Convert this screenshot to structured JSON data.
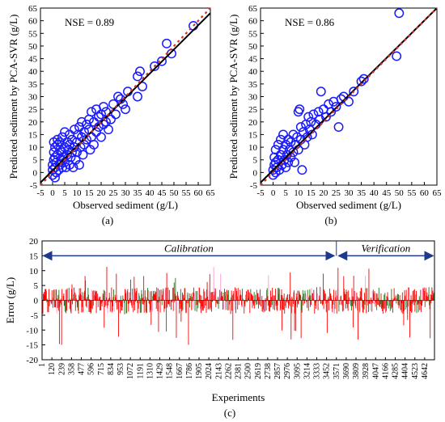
{
  "figure": {
    "panel_labels": [
      "(a)",
      "(b)",
      "(c)"
    ]
  },
  "colors": {
    "scatter_marker": "#1a1aff",
    "fit_line": "#000000",
    "one_to_one_line": "#cc3333",
    "error_bars_dark": "#1a7a1a",
    "error_bars_red": "#ff0000",
    "error_bars_pink": "#ff99cc",
    "arrow": "#1f3a8a"
  },
  "chart_data": [
    {
      "type": "scatter",
      "panel": "(a)",
      "annotation": "NSE = 0.89",
      "xlabel": "Observed sediment (g/L)",
      "ylabel": "Predicted sediment by PCA-SVR (g/L)",
      "xlim": [
        -5,
        65
      ],
      "ylim": [
        -5,
        65
      ],
      "xticks": [
        -5,
        0,
        5,
        10,
        15,
        20,
        25,
        30,
        35,
        40,
        45,
        50,
        55,
        60,
        65
      ],
      "yticks": [
        -5,
        0,
        5,
        10,
        15,
        20,
        25,
        30,
        35,
        40,
        45,
        50,
        55,
        60,
        65
      ],
      "fit_line": [
        [
          -5,
          -4
        ],
        [
          65,
          63
        ]
      ],
      "points": [
        [
          0,
          -1
        ],
        [
          0,
          1
        ],
        [
          0,
          3
        ],
        [
          0.5,
          5
        ],
        [
          0.5,
          8
        ],
        [
          0.5,
          12
        ],
        [
          1,
          -2
        ],
        [
          1,
          2
        ],
        [
          1,
          6
        ],
        [
          1,
          10
        ],
        [
          1.5,
          0
        ],
        [
          1.5,
          4
        ],
        [
          2,
          7
        ],
        [
          2,
          11
        ],
        [
          2,
          13
        ],
        [
          2.5,
          1
        ],
        [
          3,
          3
        ],
        [
          3,
          9
        ],
        [
          3,
          12
        ],
        [
          3.5,
          5
        ],
        [
          4,
          2
        ],
        [
          4,
          8
        ],
        [
          4,
          14
        ],
        [
          4.5,
          6
        ],
        [
          5,
          4
        ],
        [
          5,
          10
        ],
        [
          5,
          16
        ],
        [
          5.5,
          2
        ],
        [
          6,
          7
        ],
        [
          6,
          12
        ],
        [
          6.5,
          9
        ],
        [
          7,
          3
        ],
        [
          7,
          11
        ],
        [
          7,
          15
        ],
        [
          7.5,
          6
        ],
        [
          8,
          8
        ],
        [
          8,
          13
        ],
        [
          8.5,
          2
        ],
        [
          9,
          10
        ],
        [
          9,
          17
        ],
        [
          9.5,
          5
        ],
        [
          10,
          12
        ],
        [
          10,
          8
        ],
        [
          10.5,
          15
        ],
        [
          11,
          3
        ],
        [
          11,
          18
        ],
        [
          11.5,
          10
        ],
        [
          12,
          14
        ],
        [
          12,
          20
        ],
        [
          12.5,
          7
        ],
        [
          13,
          16
        ],
        [
          13,
          11
        ],
        [
          14,
          19
        ],
        [
          14,
          13
        ],
        [
          15,
          21
        ],
        [
          15,
          17
        ],
        [
          15.5,
          9
        ],
        [
          16,
          24
        ],
        [
          16,
          14
        ],
        [
          17,
          20
        ],
        [
          17,
          11
        ],
        [
          18,
          25
        ],
        [
          18,
          16
        ],
        [
          19,
          22
        ],
        [
          19,
          18
        ],
        [
          20,
          23
        ],
        [
          20,
          14
        ],
        [
          21,
          26
        ],
        [
          21,
          19
        ],
        [
          22,
          24
        ],
        [
          22,
          20
        ],
        [
          23,
          17
        ],
        [
          24,
          21
        ],
        [
          25,
          27
        ],
        [
          26,
          23
        ],
        [
          27,
          30
        ],
        [
          28,
          29
        ],
        [
          29,
          27
        ],
        [
          30,
          25
        ],
        [
          31,
          32
        ],
        [
          35,
          30
        ],
        [
          35,
          38
        ],
        [
          36,
          40
        ],
        [
          37,
          34
        ],
        [
          42,
          42
        ],
        [
          45,
          44
        ],
        [
          47,
          51
        ],
        [
          49,
          47
        ],
        [
          58,
          58
        ]
      ]
    },
    {
      "type": "scatter",
      "panel": "(b)",
      "annotation": "NSE = 0.86",
      "xlabel": "Observed sediment (g/L)",
      "ylabel": "Predicted sediment by PCA-SVR (g/L)",
      "xlim": [
        -5,
        65
      ],
      "ylim": [
        -5,
        65
      ],
      "xticks": [
        -5,
        0,
        5,
        10,
        15,
        20,
        25,
        30,
        35,
        40,
        45,
        50,
        55,
        60,
        65
      ],
      "yticks": [
        -5,
        0,
        5,
        10,
        15,
        20,
        25,
        30,
        35,
        40,
        45,
        50,
        55,
        60,
        65
      ],
      "fit_line": [
        [
          -5,
          -4
        ],
        [
          65,
          65
        ]
      ],
      "points": [
        [
          0,
          -1
        ],
        [
          0,
          1
        ],
        [
          0.5,
          3
        ],
        [
          0.5,
          6
        ],
        [
          1,
          0
        ],
        [
          1,
          4
        ],
        [
          1,
          9
        ],
        [
          1.5,
          2
        ],
        [
          2,
          5
        ],
        [
          2,
          11
        ],
        [
          2.5,
          1
        ],
        [
          3,
          7
        ],
        [
          3,
          13
        ],
        [
          3.5,
          3
        ],
        [
          4,
          9
        ],
        [
          4,
          15
        ],
        [
          4.5,
          5
        ],
        [
          5,
          2
        ],
        [
          5,
          11
        ],
        [
          5.5,
          7
        ],
        [
          6,
          4
        ],
        [
          6,
          13
        ],
        [
          6.5,
          9
        ],
        [
          7,
          6
        ],
        [
          7,
          12
        ],
        [
          8,
          8
        ],
        [
          8,
          15
        ],
        [
          8.5,
          4
        ],
        [
          9,
          11
        ],
        [
          9.5,
          14
        ],
        [
          10,
          9
        ],
        [
          10,
          24
        ],
        [
          10.5,
          25
        ],
        [
          11,
          13
        ],
        [
          11,
          18
        ],
        [
          11.5,
          1
        ],
        [
          12,
          16
        ],
        [
          12.5,
          11
        ],
        [
          13,
          19
        ],
        [
          13.5,
          14
        ],
        [
          14,
          22
        ],
        [
          14.5,
          17
        ],
        [
          15,
          20
        ],
        [
          15.5,
          15
        ],
        [
          16,
          23
        ],
        [
          17,
          19
        ],
        [
          18,
          24
        ],
        [
          18.5,
          21
        ],
        [
          19,
          32
        ],
        [
          20,
          25
        ],
        [
          21,
          22
        ],
        [
          22,
          27
        ],
        [
          23,
          24
        ],
        [
          24,
          28
        ],
        [
          25,
          26
        ],
        [
          26,
          18
        ],
        [
          27,
          29
        ],
        [
          28,
          30
        ],
        [
          30,
          28
        ],
        [
          32,
          32
        ],
        [
          35,
          36
        ],
        [
          36,
          37
        ],
        [
          49,
          46
        ],
        [
          50,
          63
        ]
      ]
    },
    {
      "type": "bar",
      "panel": "(c)",
      "xlabel": "Experiments",
      "ylabel": "Error (g/L)",
      "ylim": [
        -20,
        20
      ],
      "yticks": [
        -20,
        -15,
        -10,
        -5,
        0,
        5,
        10,
        15,
        20
      ],
      "xlim": [
        1,
        4761
      ],
      "xtick_labels": [
        "1",
        "120",
        "239",
        "358",
        "477",
        "596",
        "715",
        "834",
        "953",
        "1072",
        "1191",
        "1310",
        "1429",
        "1548",
        "1667",
        "1786",
        "1905",
        "2024",
        "2143",
        "2262",
        "2381",
        "2500",
        "2619",
        "2738",
        "2857",
        "2976",
        "3095",
        "3214",
        "3333",
        "3452",
        "3571",
        "3690",
        "3809",
        "3928",
        "4047",
        "4166",
        "4285",
        "4404",
        "4523",
        "4642"
      ],
      "regions": [
        {
          "label": "Calibration",
          "from": 1,
          "to": 3571
        },
        {
          "label": "Verification",
          "from": 3571,
          "to": 4761
        }
      ],
      "error_range_typical": [
        -5,
        5
      ],
      "error_extremes": [
        -15,
        12
      ]
    }
  ]
}
